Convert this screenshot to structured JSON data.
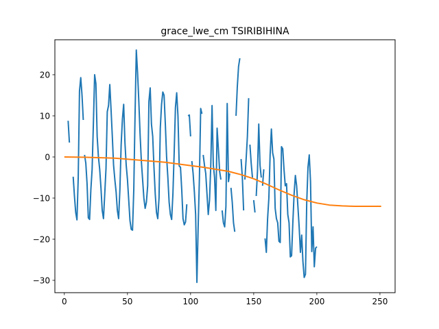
{
  "chart_data": {
    "type": "line",
    "title": "grace_lwe_cm TSIRIBIHINA",
    "xlabel": "",
    "ylabel": "",
    "xlim": [
      -7.5,
      262
    ],
    "ylim": [
      -33,
      28.5
    ],
    "xticks": [
      0,
      50,
      100,
      150,
      200,
      250
    ],
    "yticks": [
      -30,
      -20,
      -10,
      0,
      10,
      20
    ],
    "xtick_labels": [
      "0",
      "50",
      "100",
      "150",
      "200",
      "250"
    ],
    "ytick_labels": [
      "−30",
      "−20",
      "−10",
      "0",
      "10",
      "20"
    ],
    "grid": false,
    "legend": "none",
    "series": [
      {
        "color": "#1f77b4",
        "points": [
          [
            3,
            8.8
          ],
          [
            4,
            3.5
          ],
          [
            null,
            null
          ],
          [
            7,
            -4.8
          ],
          [
            8,
            -9.5
          ],
          [
            9,
            -13.5
          ],
          [
            10,
            -15.3
          ],
          [
            11,
            -5.0
          ],
          [
            12,
            16.0
          ],
          [
            13,
            19.3
          ],
          [
            14,
            15.0
          ],
          [
            15,
            9.0
          ],
          [
            null,
            null
          ],
          [
            16,
            0.5
          ],
          [
            17,
            -1.5
          ],
          [
            18,
            -6.5
          ],
          [
            19,
            -14.8
          ],
          [
            20,
            -15.2
          ],
          [
            21,
            -8.0
          ],
          [
            22,
            -3.0
          ],
          [
            23,
            8.0
          ],
          [
            24,
            20.0
          ],
          [
            25,
            17.8
          ],
          [
            26,
            5.0
          ],
          [
            27,
            0.0
          ],
          [
            28,
            -3.0
          ],
          [
            29,
            -7.5
          ],
          [
            30,
            -13.0
          ],
          [
            31,
            -15.0
          ],
          [
            32,
            -9.0
          ],
          [
            33,
            -2.8
          ],
          [
            34,
            11.0
          ],
          [
            35,
            12.5
          ],
          [
            36,
            17.6
          ],
          [
            37,
            11.5
          ],
          [
            38,
            5.0
          ],
          [
            39,
            -2.0
          ],
          [
            40,
            -5.5
          ],
          [
            41,
            -8.5
          ],
          [
            42,
            -13.0
          ],
          [
            43,
            -15.0
          ],
          [
            44,
            -8.0
          ],
          [
            45,
            3.0
          ],
          [
            46,
            9.2
          ],
          [
            47,
            12.8
          ],
          [
            48,
            3.5
          ],
          [
            49,
            -2.0
          ],
          [
            50,
            -5.5
          ],
          [
            51,
            -10.5
          ],
          [
            52,
            -15.5
          ],
          [
            53,
            -17.6
          ],
          [
            54,
            -17.8
          ],
          [
            55,
            -8.0
          ],
          [
            56,
            10.0
          ],
          [
            57,
            26.0
          ],
          [
            58,
            20.5
          ],
          [
            59,
            13.5
          ],
          [
            60,
            5.5
          ],
          [
            61,
            -1.0
          ],
          [
            62,
            -5.5
          ],
          [
            63,
            -10.0
          ],
          [
            64,
            -12.5
          ],
          [
            65,
            -11.0
          ],
          [
            66,
            -7.0
          ],
          [
            67,
            13.5
          ],
          [
            68,
            16.8
          ],
          [
            69,
            8.0
          ],
          [
            70,
            5.0
          ],
          [
            71,
            -2.5
          ],
          [
            72,
            -9.0
          ],
          [
            73,
            -13.5
          ],
          [
            74,
            -15.0
          ],
          [
            75,
            -10.0
          ],
          [
            76,
            7.0
          ],
          [
            77,
            12.8
          ],
          [
            78,
            15.8
          ],
          [
            79,
            15.0
          ],
          [
            80,
            8.0
          ],
          [
            81,
            0.0
          ],
          [
            82,
            -5.0
          ],
          [
            83,
            -11.0
          ],
          [
            84,
            -14.0
          ],
          [
            85,
            -15.2
          ],
          [
            86,
            -9.0
          ],
          [
            87,
            1.0
          ],
          [
            88,
            12.0
          ],
          [
            89,
            15.6
          ],
          [
            90,
            10.0
          ],
          [
            91,
            -2.2
          ],
          [
            92,
            -2.5
          ],
          [
            93,
            -8.0
          ],
          [
            94,
            -15.0
          ],
          [
            95,
            -16.5
          ],
          [
            96,
            -15.8
          ],
          [
            97,
            -11.5
          ],
          [
            null,
            null
          ],
          [
            98,
            10.0
          ],
          [
            99,
            10.2
          ],
          [
            100,
            5.0
          ],
          [
            null,
            null
          ],
          [
            101,
            -1.0
          ],
          [
            102,
            -4.0
          ],
          [
            103,
            -8.5
          ],
          [
            104,
            -14.0
          ],
          [
            105,
            -30.5
          ],
          [
            106,
            -17.0
          ],
          [
            107,
            -5.0
          ],
          [
            108,
            11.8
          ],
          [
            109,
            10.5
          ],
          [
            null,
            null
          ],
          [
            110,
            0.5
          ],
          [
            111,
            -2.0
          ],
          [
            112,
            -4.0
          ],
          [
            113,
            -9.0
          ],
          [
            114,
            -14.0
          ],
          [
            115,
            -10.5
          ],
          [
            116,
            -2.0
          ],
          [
            117,
            12.5
          ],
          [
            118,
            -2.0
          ],
          [
            119,
            -5.0
          ],
          [
            120,
            -13.0
          ],
          [
            121,
            7.0
          ],
          [
            122,
            2.0
          ],
          [
            123,
            -3.5
          ],
          [
            124,
            -5.5
          ],
          [
            null,
            null
          ],
          [
            125,
            -13.0
          ],
          [
            126,
            -16.0
          ],
          [
            127,
            -17.0
          ],
          [
            128,
            -12.0
          ],
          [
            129,
            13.0
          ],
          [
            130,
            -6.0
          ],
          [
            131,
            -4.0
          ],
          [
            null,
            null
          ],
          [
            132,
            -7.5
          ],
          [
            133,
            -11.0
          ],
          [
            134,
            -16.0
          ],
          [
            135,
            -18.2
          ],
          [
            null,
            null
          ],
          [
            136,
            10.0
          ],
          [
            137,
            17.0
          ],
          [
            138,
            22.0
          ],
          [
            139,
            24.0
          ],
          [
            null,
            null
          ],
          [
            140,
            -0.5
          ],
          [
            141,
            -5.0
          ],
          [
            142,
            -13.0
          ],
          [
            null,
            null
          ],
          [
            143,
            -5.5
          ],
          [
            144,
            -0.5
          ],
          [
            145,
            5.0
          ],
          [
            146,
            14.3
          ],
          [
            null,
            null
          ],
          [
            147,
            3.0
          ],
          [
            148,
            -1.5
          ],
          [
            149,
            -5.0
          ],
          [
            null,
            null
          ],
          [
            150,
            -10.5
          ],
          [
            151,
            -13.5
          ],
          [
            null,
            null
          ],
          [
            152,
            -9.5
          ],
          [
            153,
            -3.5
          ],
          [
            154,
            8.0
          ],
          [
            155,
            -2.0
          ],
          [
            156,
            -5.0
          ],
          [
            null,
            null
          ],
          [
            157,
            -7.0
          ],
          [
            158,
            -3.0
          ],
          [
            null,
            null
          ],
          [
            159,
            -19.8
          ],
          [
            160,
            -23.2
          ],
          [
            161,
            -15.0
          ],
          [
            162,
            -10.0
          ],
          [
            163,
            0.5
          ],
          [
            164,
            6.8
          ],
          [
            165,
            1.0
          ],
          [
            166,
            -0.5
          ],
          [
            167,
            -12.5
          ],
          [
            168,
            -15.0
          ],
          [
            169,
            -16.0
          ],
          [
            170,
            -20.5
          ],
          [
            171,
            -20.8
          ],
          [
            172,
            2.5
          ],
          [
            173,
            2.0
          ],
          [
            174,
            -3.0
          ],
          [
            175,
            -7.0
          ],
          [
            176,
            -6.5
          ],
          [
            177,
            -14.0
          ],
          [
            178,
            -16.0
          ],
          [
            179,
            -24.3
          ],
          [
            180,
            -24.0
          ],
          [
            181,
            -16.0
          ],
          [
            182,
            -9.0
          ],
          [
            183,
            -4.5
          ],
          [
            184,
            -7.0
          ],
          [
            185,
            -12.0
          ],
          [
            186,
            -17.0
          ],
          [
            187,
            -23.2
          ],
          [
            188,
            -19.0
          ],
          [
            189,
            -25.5
          ],
          [
            190,
            -29.3
          ],
          [
            191,
            -28.5
          ],
          [
            192,
            -11.0
          ],
          [
            193,
            -2.5
          ],
          [
            194,
            0.5
          ],
          [
            195,
            -6.0
          ],
          [
            196,
            -23.0
          ],
          [
            197,
            -17.0
          ],
          [
            198,
            -26.7
          ],
          [
            199,
            -22.2
          ],
          [
            200,
            -21.8
          ]
        ]
      },
      {
        "color": "#ff7f0e",
        "points": [
          [
            0,
            0.0
          ],
          [
            20,
            -0.1
          ],
          [
            40,
            -0.3
          ],
          [
            60,
            -0.8
          ],
          [
            80,
            -1.3
          ],
          [
            100,
            -2.1
          ],
          [
            110,
            -2.5
          ],
          [
            120,
            -3.0
          ],
          [
            130,
            -3.5
          ],
          [
            140,
            -4.3
          ],
          [
            150,
            -5.3
          ],
          [
            160,
            -6.6
          ],
          [
            170,
            -8.0
          ],
          [
            180,
            -9.3
          ],
          [
            190,
            -10.4
          ],
          [
            200,
            -11.2
          ],
          [
            210,
            -11.7
          ],
          [
            220,
            -11.9
          ],
          [
            230,
            -12.0
          ],
          [
            240,
            -12.0
          ],
          [
            251,
            -12.0
          ]
        ]
      }
    ]
  }
}
